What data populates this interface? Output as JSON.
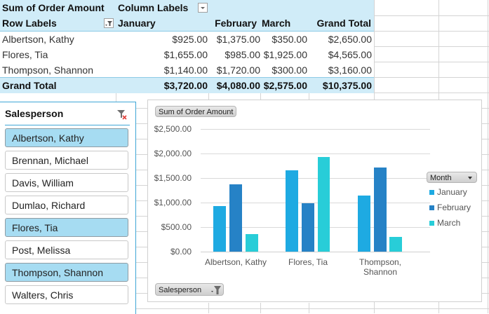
{
  "pivot": {
    "corner_label": "Sum of Order Amount",
    "column_labels": "Column Labels",
    "row_labels": "Row Labels",
    "columns": [
      "January",
      "February",
      "March",
      "Grand Total"
    ],
    "rows": [
      {
        "name": "Albertson, Kathy",
        "values": [
          "$925.00",
          "$1,375.00",
          "$350.00",
          "$2,650.00"
        ]
      },
      {
        "name": "Flores, Tia",
        "values": [
          "$1,655.00",
          "$985.00",
          "$1,925.00",
          "$4,565.00"
        ]
      },
      {
        "name": "Thompson, Shannon",
        "values": [
          "$1,140.00",
          "$1,720.00",
          "$300.00",
          "$3,160.00"
        ]
      }
    ],
    "grand_total": {
      "name": "Grand Total",
      "values": [
        "$3,720.00",
        "$4,080.00",
        "$2,575.00",
        "$10,375.00"
      ]
    }
  },
  "slicer": {
    "title": "Salesperson",
    "clear_filter_icon": "clear-filter-icon",
    "items": [
      {
        "label": "Albertson, Kathy",
        "selected": true
      },
      {
        "label": "Brennan, Michael",
        "selected": false
      },
      {
        "label": "Davis, William",
        "selected": false
      },
      {
        "label": "Dumlao, Richard",
        "selected": false
      },
      {
        "label": "Flores, Tia",
        "selected": true
      },
      {
        "label": "Post, Melissa",
        "selected": false
      },
      {
        "label": "Thompson, Shannon",
        "selected": true
      },
      {
        "label": "Walters, Chris",
        "selected": false
      }
    ]
  },
  "chart": {
    "value_button": "Sum of Order Amount",
    "axis_button": "Salesperson",
    "legend_button": "Month",
    "colors": {
      "January": "#1eaae2",
      "February": "#2682c6",
      "March": "#28cdd8"
    }
  },
  "chart_data": {
    "type": "bar",
    "title": "",
    "categories": [
      "Albertson, Kathy",
      "Flores, Tia",
      "Thompson, Shannon"
    ],
    "series": [
      {
        "name": "January",
        "values": [
          925,
          1655,
          1140
        ]
      },
      {
        "name": "February",
        "values": [
          1375,
          985,
          1720
        ]
      },
      {
        "name": "March",
        "values": [
          350,
          1925,
          300
        ]
      }
    ],
    "xlabel": "",
    "ylabel": "Sum of Order Amount",
    "yticks": [
      "$0.00",
      "$500.00",
      "$1,000.00",
      "$1,500.00",
      "$2,000.00",
      "$2,500.00"
    ],
    "ylim": [
      0,
      2500
    ],
    "grid": true,
    "legend_position": "right",
    "legend_title": "Month"
  }
}
